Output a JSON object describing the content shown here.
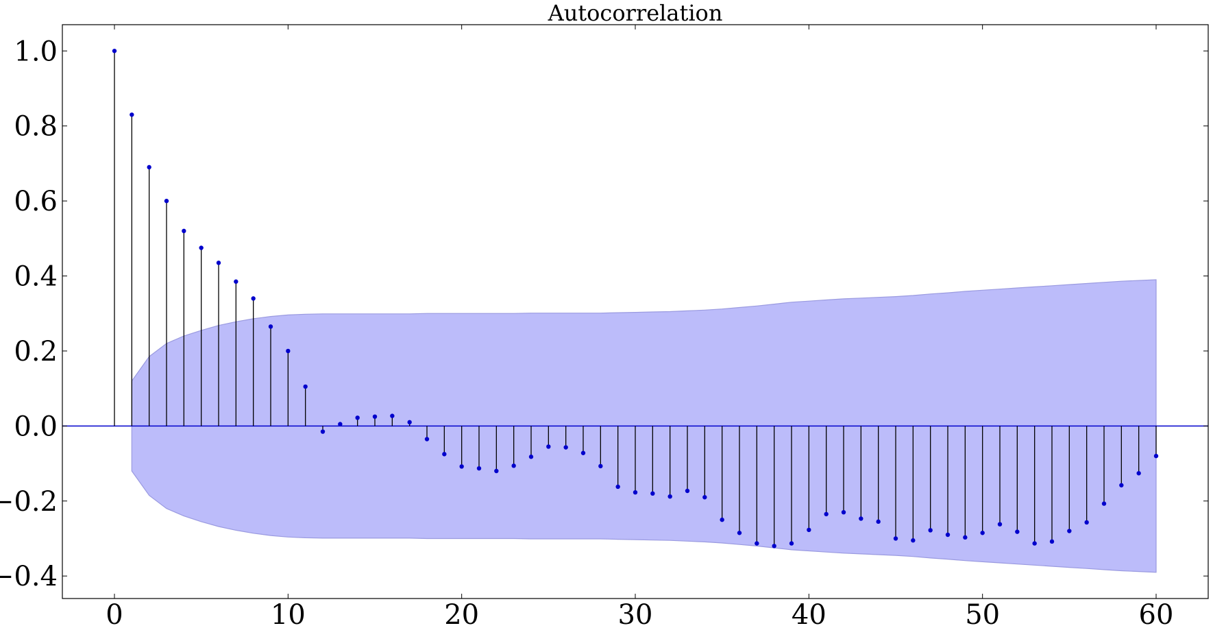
{
  "chart_data": {
    "type": "stem",
    "title": "Autocorrelation",
    "xlabel": "",
    "ylabel": "",
    "xlim": [
      -3,
      63
    ],
    "ylim": [
      -0.46,
      1.07
    ],
    "xticks": [
      0,
      10,
      20,
      30,
      40,
      50,
      60
    ],
    "xtick_labels": [
      "0",
      "10",
      "20",
      "30",
      "40",
      "50",
      "60"
    ],
    "yticks": [
      -0.4,
      -0.2,
      0.0,
      0.2,
      0.4,
      0.6,
      0.8,
      1.0
    ],
    "ytick_labels": [
      "−0.4",
      "−0.2",
      "0.0",
      "0.2",
      "0.4",
      "0.6",
      "0.8",
      "1.0"
    ],
    "grid": false,
    "colors": {
      "marker": "#0000cc",
      "stem": "#000000",
      "zero_line": "#0000cc",
      "confint_fill": "#bcbcfa",
      "confint_edge": "#9a9ae0"
    },
    "lags": [
      0,
      1,
      2,
      3,
      4,
      5,
      6,
      7,
      8,
      9,
      10,
      11,
      12,
      13,
      14,
      15,
      16,
      17,
      18,
      19,
      20,
      21,
      22,
      23,
      24,
      25,
      26,
      27,
      28,
      29,
      30,
      31,
      32,
      33,
      34,
      35,
      36,
      37,
      38,
      39,
      40,
      41,
      42,
      43,
      44,
      45,
      46,
      47,
      48,
      49,
      50,
      51,
      52,
      53,
      54,
      55,
      56,
      57,
      58,
      59,
      60
    ],
    "acf": [
      1.0,
      0.83,
      0.69,
      0.6,
      0.52,
      0.475,
      0.435,
      0.385,
      0.34,
      0.265,
      0.2,
      0.105,
      -0.015,
      0.005,
      0.022,
      0.025,
      0.027,
      0.01,
      -0.035,
      -0.075,
      -0.108,
      -0.113,
      -0.12,
      -0.106,
      -0.082,
      -0.055,
      -0.057,
      -0.072,
      -0.107,
      -0.162,
      -0.177,
      -0.18,
      -0.188,
      -0.173,
      -0.19,
      -0.25,
      -0.285,
      -0.313,
      -0.32,
      -0.313,
      -0.277,
      -0.235,
      -0.23,
      -0.247,
      -0.255,
      -0.3,
      -0.305,
      -0.278,
      -0.29,
      -0.297,
      -0.285,
      -0.262,
      -0.282,
      -0.313,
      -0.308,
      -0.28,
      -0.257,
      -0.207,
      -0.158,
      -0.126,
      -0.08
    ],
    "confint_upper": [
      null,
      0.12,
      0.185,
      0.22,
      0.24,
      0.255,
      0.268,
      0.278,
      0.286,
      0.292,
      0.296,
      0.298,
      0.299,
      0.299,
      0.299,
      0.299,
      0.299,
      0.299,
      0.3,
      0.3,
      0.3,
      0.3,
      0.3,
      0.3,
      0.301,
      0.301,
      0.301,
      0.301,
      0.301,
      0.302,
      0.303,
      0.304,
      0.305,
      0.307,
      0.309,
      0.312,
      0.316,
      0.32,
      0.325,
      0.33,
      0.333,
      0.336,
      0.339,
      0.341,
      0.343,
      0.345,
      0.348,
      0.352,
      0.355,
      0.359,
      0.362,
      0.365,
      0.368,
      0.371,
      0.374,
      0.377,
      0.38,
      0.383,
      0.386,
      0.388,
      0.39
    ]
  }
}
